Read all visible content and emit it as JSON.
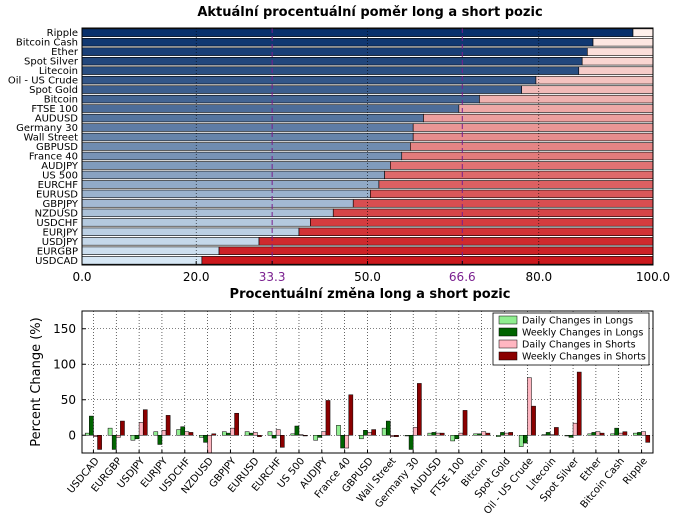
{
  "chart_data": [
    {
      "type": "bar",
      "orientation": "horizontal-stacked",
      "title": "Aktuální procentuální poměr long a short pozic",
      "categories": [
        "Ripple",
        "Bitcoin Cash",
        "Ether",
        "Spot Silver",
        "Litecoin",
        "Oil - US Crude",
        "Spot Gold",
        "Bitcoin",
        "FTSE 100",
        "AUDUSD",
        "Germany 30",
        "Wall Street",
        "GBPUSD",
        "France 40",
        "AUDJPY",
        "US 500",
        "EURCHF",
        "EURUSD",
        "GBPJPY",
        "NZDUSD",
        "USDCHF",
        "EURJPY",
        "USDJPY",
        "EURGBP",
        "USDCAD"
      ],
      "long_pct": [
        96.5,
        89.5,
        88.5,
        87.6,
        87.0,
        79.5,
        77.0,
        69.6,
        66.0,
        59.8,
        58.0,
        58.0,
        57.5,
        56.0,
        54.0,
        53.0,
        52.0,
        50.5,
        47.5,
        44.0,
        40.0,
        38.0,
        31.0,
        24.0,
        21.0
      ],
      "xlim": [
        0,
        100
      ],
      "xticks": [
        "0.0",
        "20.0",
        "33.3",
        "50.0",
        "66.6",
        "80.0",
        "100.0"
      ],
      "xtick_values": [
        0,
        20,
        33.3,
        50,
        66.6,
        80,
        100
      ],
      "reference_lines": [
        33.3,
        66.6
      ],
      "reference_color": "#7a1f8f",
      "grid": true
    },
    {
      "type": "bar",
      "title": "Procentuální změna long a short pozic",
      "ylabel": "Percent Change (%)",
      "ylim": [
        -25,
        175
      ],
      "yticks": [
        "0",
        "50",
        "100",
        "150"
      ],
      "ytick_values": [
        0,
        50,
        100,
        150
      ],
      "grid": true,
      "legend_placement": "top-right",
      "categories": [
        "USDCAD",
        "EURGBP",
        "USDJPY",
        "EURJPY",
        "USDCHF",
        "NZDUSD",
        "GBPJPY",
        "EURUSD",
        "EURCHF",
        "US 500",
        "AUDJPY",
        "France 40",
        "GBPUSD",
        "Wall Street",
        "Germany 30",
        "AUDUSD",
        "FTSE 100",
        "Bitcoin",
        "Spot Gold",
        "Oil - US Crude",
        "Litecoin",
        "Spot Silver",
        "Ether",
        "Bitcoin Cash",
        "Ripple"
      ],
      "series": [
        {
          "name": "Daily Changes in Longs",
          "color": "#90ee90",
          "values": [
            3,
            10,
            -7,
            5,
            8,
            -3,
            5,
            5,
            5,
            2,
            -7,
            14,
            -5,
            10,
            -1,
            3,
            -8,
            2,
            -2,
            -16,
            1,
            -1,
            2,
            2,
            3
          ]
        },
        {
          "name": "Weekly Changes in Longs",
          "color": "#006400",
          "values": [
            27,
            -20,
            -5,
            -13,
            12,
            -10,
            3,
            3,
            -4,
            13,
            -3,
            -18,
            7,
            20,
            -20,
            4,
            -5,
            2,
            4,
            -11,
            4,
            -3,
            4,
            10,
            4
          ]
        },
        {
          "name": "Daily Changes in Shorts",
          "color": "#ffb6c1",
          "values": [
            -2,
            -3,
            18,
            7,
            5,
            -25,
            10,
            4,
            8,
            1,
            5,
            -18,
            4,
            -2,
            11,
            3,
            3,
            5,
            3,
            81,
            1,
            17,
            5,
            3,
            5
          ]
        },
        {
          "name": "Weekly Changes in Shorts",
          "color": "#8b0000",
          "values": [
            -20,
            20,
            36,
            28,
            4,
            2,
            31,
            -2,
            -17,
            -1,
            49,
            57,
            8,
            -2,
            73,
            3,
            35,
            3,
            4,
            41,
            11,
            89,
            3,
            5,
            -10
          ]
        }
      ]
    }
  ]
}
